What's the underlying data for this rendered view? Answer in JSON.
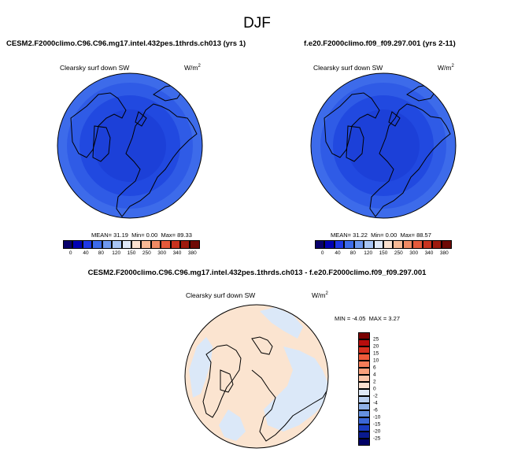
{
  "page": {
    "title": "DJF"
  },
  "panels": [
    {
      "case": "CESM2.F2000climo.C96.C96.mg17.intel.432pes.1thrds.ch013 (yrs 1)",
      "variable": "Clearsky surf down SW",
      "units": "W/m",
      "units_exp": "2",
      "stats": {
        "mean_label": "MEAN=",
        "mean": "31.19",
        "min_label": "Min=",
        "min": "0.00",
        "max_label": "Max=",
        "max": "89.33"
      }
    },
    {
      "case": "f.e20.F2000climo.f09_f09.297.001 (yrs 2-11)",
      "variable": "Clearsky surf down SW",
      "units": "W/m",
      "units_exp": "2",
      "stats": {
        "mean_label": "MEAN=",
        "mean": "31.22",
        "min_label": "Min=",
        "min": "0.00",
        "max_label": "Max=",
        "max": "88.57"
      }
    }
  ],
  "colorbar": {
    "labels": [
      "0",
      "40",
      "80",
      "120",
      "150",
      "250",
      "300",
      "340",
      "380"
    ],
    "colors": [
      "#08006b",
      "#0000b3",
      "#1f38e6",
      "#3d6bea",
      "#6f99f0",
      "#a8c5f5",
      "#dfe8f8",
      "#fbe1cf",
      "#f7b995",
      "#f08a64",
      "#e55a3b",
      "#c8331f",
      "#9e1a0d",
      "#6e0a05"
    ]
  },
  "difference": {
    "title": "CESM2.F2000climo.C96.C96.mg17.intel.432pes.1thrds.ch013 - f.e20.F2000climo.f09_f09.297.001",
    "variable": "Clearsky surf down SW",
    "units": "W/m",
    "units_exp": "2",
    "stats": {
      "min_label": "MIN =",
      "min": "-4.05",
      "max_label": "MAX =",
      "max": "3.27"
    },
    "colorbar": {
      "labels": [
        "25",
        "20",
        "15",
        "10",
        "6",
        "4",
        "2",
        "0",
        "-2",
        "-4",
        "-6",
        "-10",
        "-15",
        "-20",
        "-25"
      ],
      "colors": [
        "#7a0000",
        "#b80d0d",
        "#d7301f",
        "#ef5a3a",
        "#f57d59",
        "#f8a07c",
        "#fac4a8",
        "#fbe0cf",
        "#dfe9f7",
        "#b9cff0",
        "#8fb1e8",
        "#6591e0",
        "#3b67d6",
        "#1a3cc0",
        "#0a1a8f",
        "#000066"
      ]
    },
    "colors": {
      "positive": "#fbe4d0",
      "negative": "#dbe8f8"
    }
  }
}
